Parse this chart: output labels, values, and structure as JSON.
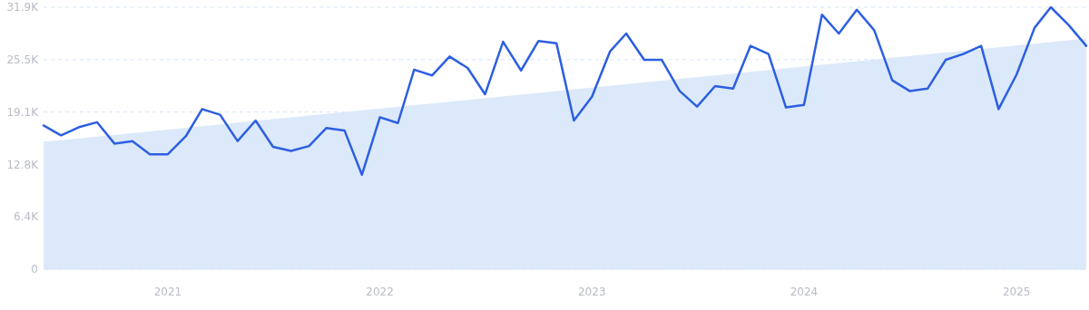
{
  "chart_data": {
    "type": "line",
    "x": [
      "2020-06",
      "2020-07",
      "2020-08",
      "2020-09",
      "2020-10",
      "2020-11",
      "2020-12",
      "2021-01",
      "2021-02",
      "2021-03",
      "2021-04",
      "2021-05",
      "2021-06",
      "2021-07",
      "2021-08",
      "2021-09",
      "2021-10",
      "2021-11",
      "2021-12",
      "2022-01",
      "2022-02",
      "2022-03",
      "2022-04",
      "2022-05",
      "2022-06",
      "2022-07",
      "2022-08",
      "2022-09",
      "2022-10",
      "2022-11",
      "2022-12",
      "2023-01",
      "2023-02",
      "2023-03",
      "2023-04",
      "2023-05",
      "2023-06",
      "2023-07",
      "2023-08",
      "2023-09",
      "2023-10",
      "2023-11",
      "2023-12",
      "2024-01",
      "2024-02",
      "2024-03",
      "2024-04",
      "2024-05",
      "2024-06",
      "2024-07",
      "2024-08",
      "2024-09",
      "2024-10",
      "2024-11",
      "2024-12",
      "2025-01",
      "2025-02",
      "2025-03",
      "2025-04",
      "2025-05"
    ],
    "series": [
      {
        "type": "area",
        "color": "#dce9fa",
        "x": [
          "2020-06",
          "2025-05"
        ],
        "values": [
          15500,
          28100
        ]
      },
      {
        "color": "#2d5fe0",
        "values": [
          17500,
          16300,
          17300,
          17900,
          15300,
          15600,
          14000,
          14000,
          16200,
          19500,
          18800,
          15600,
          18100,
          14900,
          14400,
          15000,
          17200,
          16900,
          11500,
          18500,
          17800,
          24300,
          23600,
          25900,
          24500,
          21300,
          27700,
          24200,
          27800,
          27500,
          18100,
          21000,
          26500,
          28700,
          25500,
          25500,
          21700,
          19800,
          22300,
          22000,
          27200,
          26200,
          19700,
          20000,
          31000,
          28700,
          31600,
          29100,
          23000,
          21700,
          22000,
          25500,
          26200,
          27200,
          19500,
          23700,
          29400,
          31900,
          29700,
          27200
        ]
      }
    ],
    "xlim": [
      "2020-06",
      "2025-05"
    ],
    "xticks": [
      "2021",
      "2022",
      "2023",
      "2024",
      "2025"
    ],
    "ylim": [
      0,
      31900
    ],
    "yticks": [
      0,
      {
        "value": 6380,
        "label": "6.4K"
      },
      {
        "value": 12760,
        "label": "12.8K"
      },
      {
        "value": 19140,
        "label": "19.1K"
      },
      {
        "value": 25520,
        "label": "25.5K"
      },
      {
        "value": 31900,
        "label": "31.9K"
      }
    ],
    "grid": "y",
    "line_style": "solid"
  }
}
